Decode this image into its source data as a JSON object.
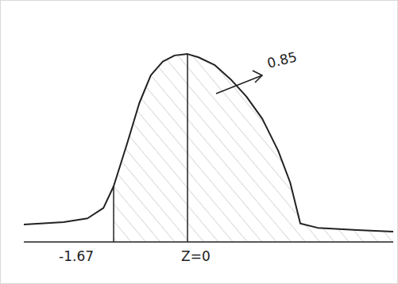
{
  "chart_data": {
    "type": "normal_curve",
    "x": [
      -3.7,
      -2.8,
      -2.26,
      -1.9,
      -1.67,
      -1.36,
      -1.09,
      -0.83,
      -0.56,
      -0.29,
      0,
      0.25,
      0.61,
      0.97,
      1.33,
      1.69,
      2.05,
      2.32,
      2.55,
      2.94,
      3.84,
      4.65
    ],
    "values": [
      0.037,
      0.042,
      0.05,
      0.072,
      0.118,
      0.21,
      0.294,
      0.353,
      0.382,
      0.395,
      0.398,
      0.391,
      0.375,
      0.345,
      0.308,
      0.261,
      0.193,
      0.126,
      0.039,
      0.03,
      0.025,
      0.022
    ],
    "xlim": [
      -3.7,
      4.65
    ],
    "ylim": [
      0,
      0.42
    ],
    "xticks": [
      -1.67,
      {
        "value": 0,
        "label": "Z=0"
      }
    ],
    "tick_labels": "x",
    "shaded_area": {
      "from": -1.67,
      "value": 0.85
    },
    "color": "#222222"
  }
}
